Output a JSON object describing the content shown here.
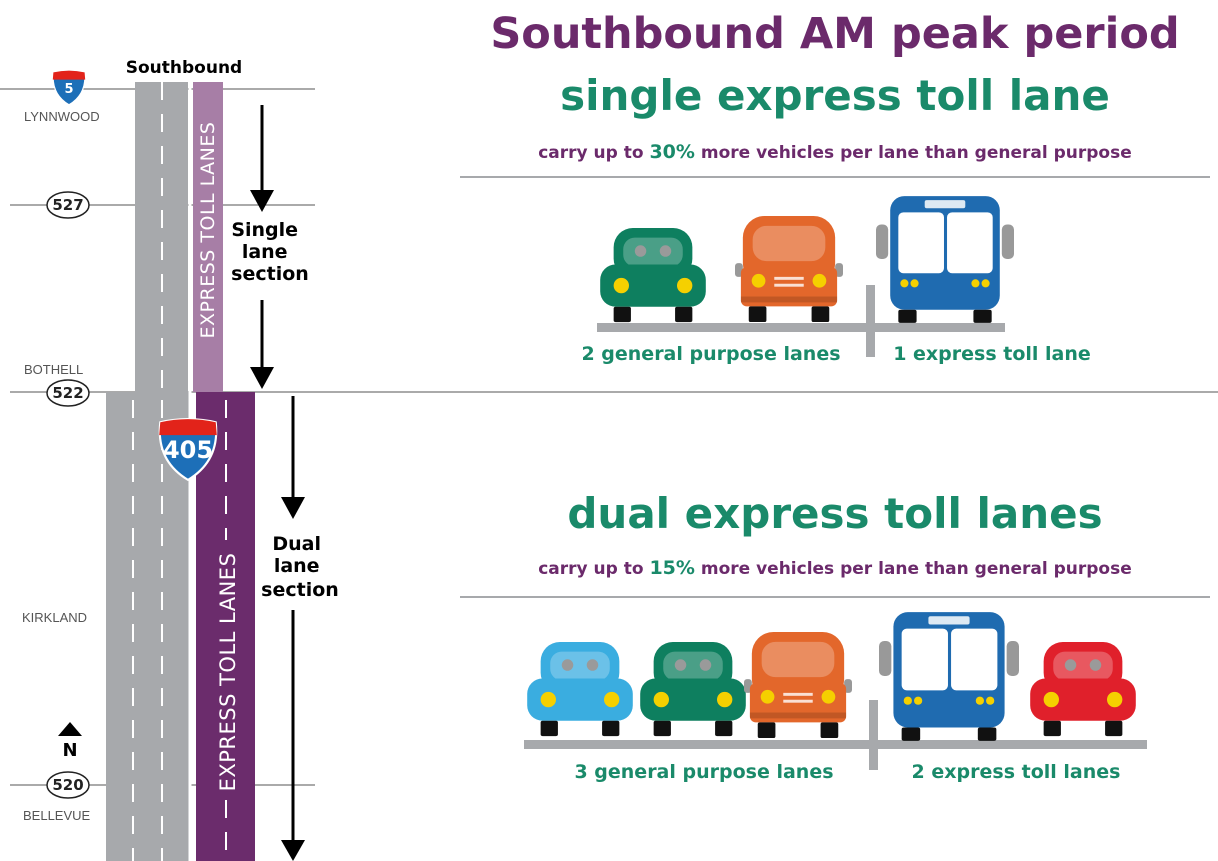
{
  "map": {
    "direction": "Southbound",
    "north_interstate": "5",
    "interstate": "405",
    "north": "N",
    "places": [
      {
        "city": "LYNNWOOD"
      },
      {
        "route": "527"
      },
      {
        "city": "BOTHELL",
        "route": "522"
      },
      {
        "city": "KIRKLAND"
      },
      {
        "route": "520",
        "city": "BELLEVUE"
      }
    ],
    "single_lanes_label": "EXPRESS TOLL LANES",
    "dual_lanes_label": "EXPRESS TOLL LANES",
    "single_section": [
      "Single",
      "lane",
      "section"
    ],
    "dual_section": [
      "Dual",
      "lane",
      "section"
    ]
  },
  "header": {
    "title": "Southbound AM peak period"
  },
  "single": {
    "title": "single express toll lane",
    "note": {
      "before": "carry up to",
      "highlight": "30%",
      "after": "more vehicles per lane than general purpose"
    },
    "general_label": "2 general purpose lanes",
    "express_label": "1 express toll lane"
  },
  "dual": {
    "title": "dual express toll lanes",
    "note": {
      "before": "carry up to",
      "highlight": "15%",
      "after": "more vehicles per lane than general purpose"
    },
    "general_label": "3 general purpose lanes",
    "express_label": "2 express toll lanes"
  }
}
